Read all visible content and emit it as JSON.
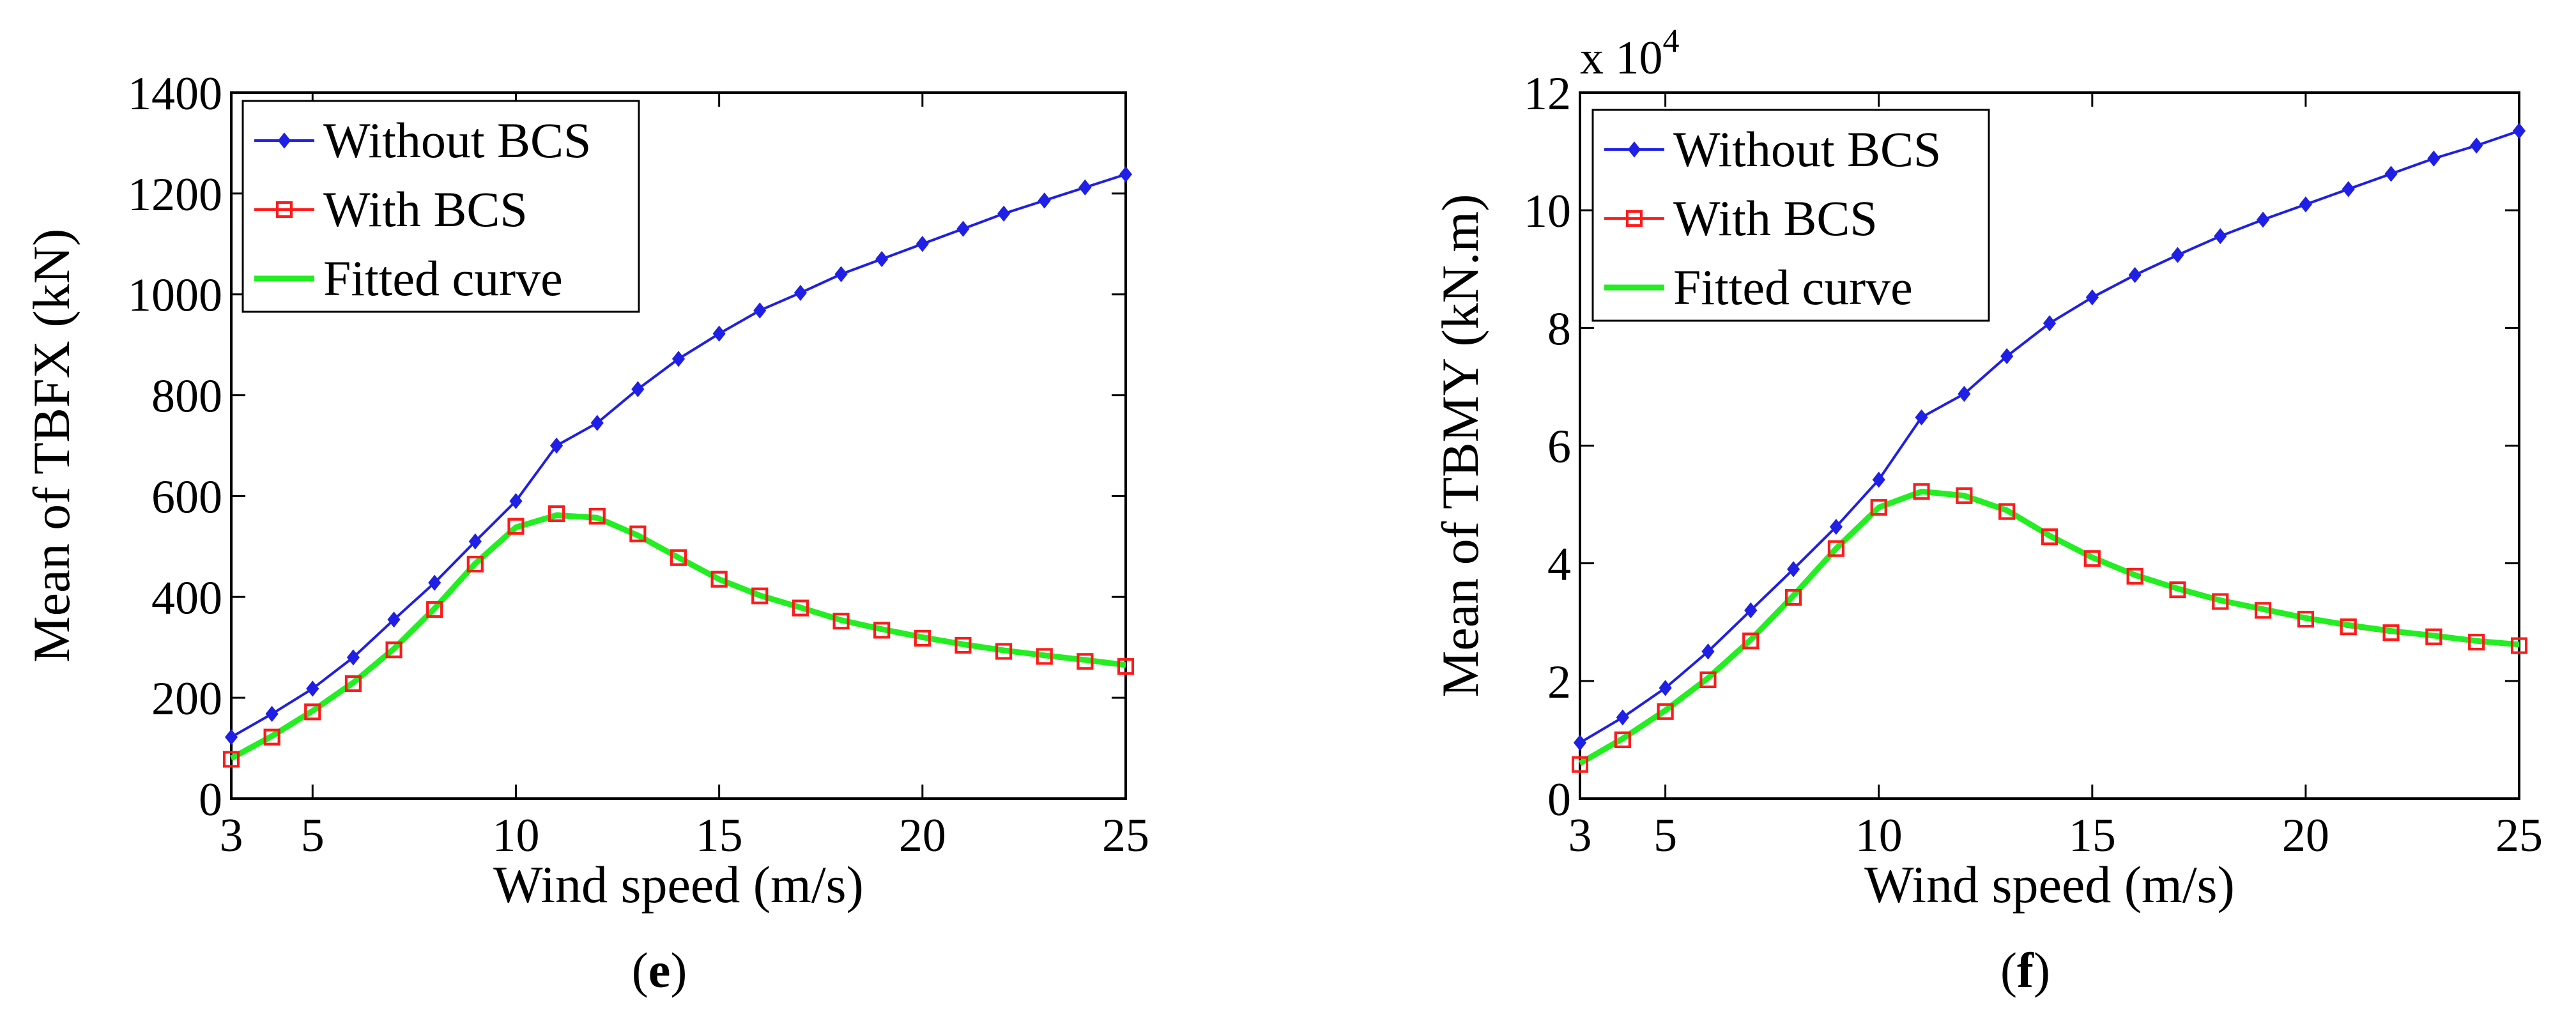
{
  "chart_data": [
    {
      "type": "line",
      "panel_label": "e",
      "xlabel": "Wind speed (m/s)",
      "ylabel": "Mean of TBFX (kN)",
      "xlim": [
        3,
        25
      ],
      "ylim": [
        0,
        1400
      ],
      "xticks": [
        3,
        5,
        10,
        15,
        20,
        25
      ],
      "yticks": [
        0,
        200,
        400,
        600,
        800,
        1000,
        1200,
        1400
      ],
      "y_multiplier": "",
      "legend_position": "top-left",
      "x": [
        3,
        4,
        5,
        6,
        7,
        8,
        9,
        10,
        11,
        12,
        13,
        14,
        15,
        16,
        17,
        18,
        19,
        20,
        21,
        22,
        23,
        24,
        25
      ],
      "series": [
        {
          "name": "Without BCS",
          "color": "#1f1fe6",
          "marker": "diamond",
          "values": [
            122,
            168,
            218,
            280,
            355,
            428,
            510,
            590,
            700,
            745,
            812,
            872,
            922,
            968,
            1003,
            1040,
            1070,
            1100,
            1130,
            1160,
            1186,
            1212,
            1238
          ]
        },
        {
          "name": "With BCS",
          "color": "#ff1a1a",
          "marker": "square",
          "values": [
            78,
            122,
            172,
            228,
            295,
            375,
            465,
            540,
            565,
            560,
            525,
            478,
            435,
            402,
            378,
            352,
            334,
            318,
            304,
            292,
            282,
            272,
            262
          ]
        },
        {
          "name": "Fitted curve",
          "color": "#22ee22",
          "marker": "none",
          "values": [
            80,
            124,
            174,
            230,
            297,
            377,
            466,
            538,
            562,
            557,
            522,
            478,
            435,
            403,
            379,
            354,
            336,
            320,
            306,
            294,
            284,
            275,
            265
          ]
        }
      ]
    },
    {
      "type": "line",
      "panel_label": "f",
      "xlabel": "Wind speed (m/s)",
      "ylabel": "Mean of TBMY (kN.m)",
      "xlim": [
        3,
        25
      ],
      "ylim": [
        0,
        12
      ],
      "xticks": [
        3,
        5,
        10,
        15,
        20,
        25
      ],
      "yticks": [
        0,
        2,
        4,
        6,
        8,
        10,
        12
      ],
      "y_multiplier": "x 10",
      "y_multiplier_exponent": "4",
      "legend_position": "top-left",
      "x": [
        3,
        4,
        5,
        6,
        7,
        8,
        9,
        10,
        11,
        12,
        13,
        14,
        15,
        16,
        17,
        18,
        19,
        20,
        21,
        22,
        23,
        24,
        25
      ],
      "series": [
        {
          "name": "Without BCS",
          "color": "#1f1fe6",
          "marker": "diamond",
          "values": [
            0.95,
            1.38,
            1.88,
            2.5,
            3.2,
            3.9,
            4.62,
            5.42,
            6.48,
            6.88,
            7.52,
            8.08,
            8.52,
            8.9,
            9.24,
            9.56,
            9.84,
            10.1,
            10.36,
            10.62,
            10.88,
            11.1,
            11.35
          ]
        },
        {
          "name": "With BCS",
          "color": "#ff1a1a",
          "marker": "square",
          "values": [
            0.58,
            1.0,
            1.48,
            2.02,
            2.68,
            3.42,
            4.25,
            4.95,
            5.22,
            5.15,
            4.88,
            4.45,
            4.08,
            3.78,
            3.55,
            3.35,
            3.2,
            3.05,
            2.92,
            2.82,
            2.75,
            2.66,
            2.6
          ]
        },
        {
          "name": "Fitted curve",
          "color": "#22ee22",
          "marker": "none",
          "values": [
            0.6,
            1.02,
            1.5,
            2.05,
            2.7,
            3.45,
            4.25,
            4.95,
            5.22,
            5.15,
            4.9,
            4.47,
            4.1,
            3.8,
            3.57,
            3.37,
            3.22,
            3.07,
            2.95,
            2.85,
            2.77,
            2.68,
            2.62
          ]
        }
      ]
    }
  ]
}
